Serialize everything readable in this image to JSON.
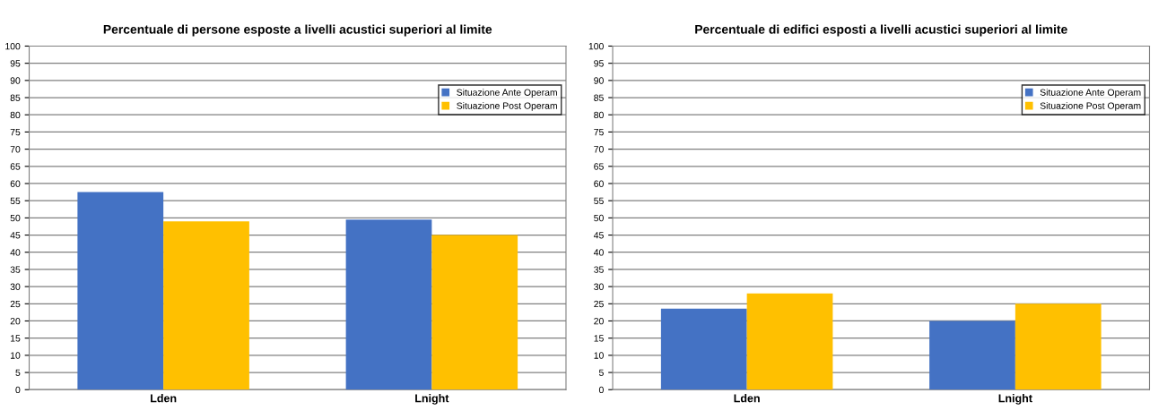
{
  "chart_data": [
    {
      "type": "bar",
      "title": "Percentuale di persone esposte a livelli acustici superiori al limite",
      "categories": [
        "Lden",
        "Lnight"
      ],
      "series": [
        {
          "name": "Situazione Ante Operam",
          "color": "#4472c4",
          "values": [
            57.5,
            49.5
          ]
        },
        {
          "name": "Situazione Post Operam",
          "color": "#ffc000",
          "values": [
            49,
            45
          ]
        }
      ],
      "ylim": [
        0,
        100
      ],
      "yticks": [
        0,
        5,
        10,
        15,
        20,
        25,
        30,
        35,
        40,
        45,
        50,
        55,
        60,
        65,
        70,
        75,
        80,
        85,
        90,
        95,
        100
      ],
      "grid": "y",
      "legend": "top right"
    },
    {
      "type": "bar",
      "title": "Percentuale di edifici esposti a livelli acustici superiori al limite",
      "categories": [
        "Lden",
        "Lnight"
      ],
      "series": [
        {
          "name": "Situazione Ante Operam",
          "color": "#4472c4",
          "values": [
            23.6,
            20
          ]
        },
        {
          "name": "Situazione Post Operam",
          "color": "#ffc000",
          "values": [
            28,
            25
          ]
        }
      ],
      "ylim": [
        0,
        100
      ],
      "yticks": [
        0,
        5,
        10,
        15,
        20,
        25,
        30,
        35,
        40,
        45,
        50,
        55,
        60,
        65,
        70,
        75,
        80,
        85,
        90,
        95,
        100
      ],
      "grid": "y",
      "legend": "top right"
    }
  ]
}
